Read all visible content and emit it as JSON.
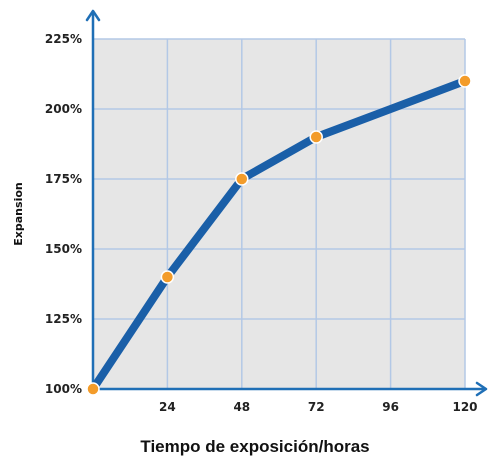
{
  "chart_data": {
    "type": "line",
    "title": "",
    "xlabel": "Tiempo de exposición/horas",
    "ylabel": "Expansion",
    "xlim": [
      0,
      120
    ],
    "ylim": [
      100,
      225
    ],
    "x_ticks": [
      24,
      48,
      72,
      96,
      120
    ],
    "y_ticks": [
      100,
      125,
      150,
      175,
      200,
      225
    ],
    "x_tick_labels": [
      "24",
      "48",
      "72",
      "96",
      "120"
    ],
    "y_tick_labels": [
      "100%",
      "125%",
      "150%",
      "175%",
      "200%",
      "225%"
    ],
    "grid": true,
    "series": [
      {
        "x": [
          0,
          24,
          48,
          72,
          120
        ],
        "values": [
          100,
          140,
          175,
          190,
          210
        ]
      }
    ],
    "colors": {
      "plot_background": "#e6e6e6",
      "grid": "#b3c8e6",
      "axis": "#1f6fb6",
      "line": "#1a5fa8",
      "marker_fill": "#f39c2a",
      "marker_stroke": "#ffffff"
    }
  }
}
